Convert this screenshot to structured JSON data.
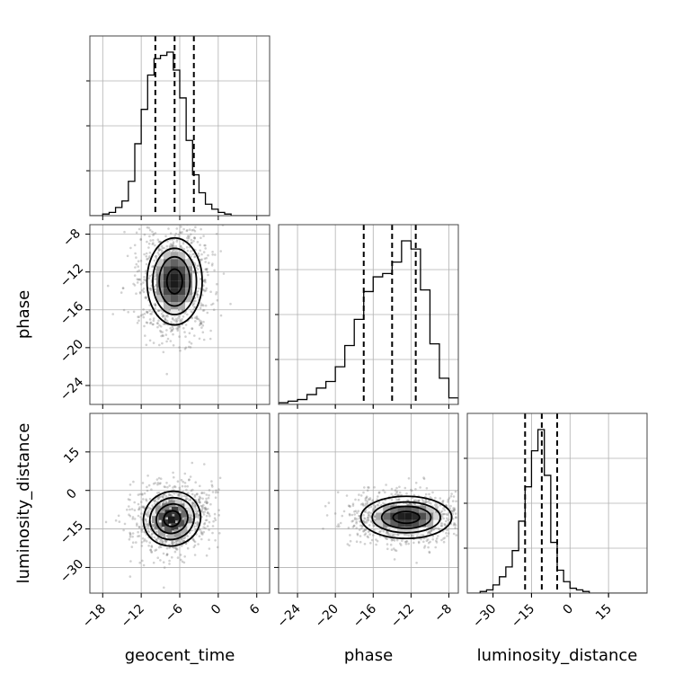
{
  "chart_data": {
    "type": "corner",
    "parameters": [
      {
        "key": "g",
        "name": "geocent_time",
        "range": [
          -20,
          8
        ],
        "ticks": [
          -18,
          -12,
          -6,
          0,
          6
        ],
        "tick_labels": [
          "−18",
          "−12",
          "−6",
          "0",
          "6"
        ],
        "quantiles": [
          -9.8,
          -6.8,
          -3.8
        ],
        "histogram": {
          "bin_edges": [
            -20,
            -19,
            -18,
            -17,
            -16,
            -15,
            -14,
            -13,
            -12,
            -11,
            -10,
            -9,
            -8,
            -7,
            -6,
            -5,
            -4,
            -3,
            -2,
            -1,
            0,
            1,
            2,
            3,
            4,
            5,
            6,
            7,
            8
          ],
          "density": [
            0,
            0,
            0.01,
            0.02,
            0.05,
            0.09,
            0.21,
            0.44,
            0.65,
            0.86,
            0.96,
            0.98,
            1.0,
            0.89,
            0.72,
            0.46,
            0.25,
            0.14,
            0.07,
            0.04,
            0.02,
            0.01,
            0,
            0,
            0,
            0,
            0,
            0
          ]
        }
      },
      {
        "key": "p",
        "name": "phase",
        "range": [
          -26,
          -7
        ],
        "ticks": [
          -24,
          -20,
          -16,
          -12,
          -8
        ],
        "tick_labels": [
          "−24",
          "−20",
          "−16",
          "−12",
          "−8"
        ],
        "quantiles": [
          -17.0,
          -14.0,
          -11.5
        ],
        "histogram": {
          "bin_edges": [
            -26,
            -25,
            -24,
            -23,
            -22,
            -21,
            -20,
            -19,
            -18,
            -17,
            -16,
            -15,
            -14,
            -13,
            -12,
            -11,
            -10,
            -9,
            -8,
            -7
          ],
          "density": [
            0.01,
            0.02,
            0.03,
            0.06,
            0.1,
            0.14,
            0.23,
            0.36,
            0.52,
            0.69,
            0.78,
            0.8,
            0.87,
            1.0,
            0.95,
            0.7,
            0.37,
            0.16,
            0.04
          ]
        }
      },
      {
        "key": "l",
        "name": "luminosity_distance",
        "range": [
          -40,
          30
        ],
        "ticks": [
          -30,
          -15,
          0,
          15
        ],
        "tick_labels": [
          "−30",
          "−15",
          "0",
          "15"
        ],
        "quantiles": [
          -17.5,
          -11.0,
          -5.0
        ],
        "histogram": {
          "bin_edges": [
            -40,
            -37.5,
            -35,
            -32.5,
            -30,
            -27.5,
            -25,
            -22.5,
            -20,
            -17.5,
            -15,
            -12.5,
            -10,
            -7.5,
            -5,
            -2.5,
            0,
            2.5,
            5,
            7.5,
            10,
            12.5,
            15,
            17.5,
            20,
            22.5,
            25,
            27.5,
            30
          ],
          "density": [
            0,
            0,
            0.01,
            0.02,
            0.05,
            0.1,
            0.16,
            0.26,
            0.44,
            0.65,
            0.87,
            1.0,
            0.72,
            0.31,
            0.14,
            0.07,
            0.03,
            0.02,
            0.01,
            0,
            0,
            0,
            0,
            0,
            0,
            0,
            0,
            0
          ]
        }
      }
    ],
    "pairs": [
      {
        "x": "g",
        "y": "p",
        "center": [
          -6.8,
          -13.0
        ],
        "levels": [
          {
            "sx": 1.2,
            "sy": 1.3
          },
          {
            "sx": 2.4,
            "sy": 2.6
          },
          {
            "sx": 3.4,
            "sy": 3.5
          },
          {
            "sx": 4.3,
            "sy": 4.6
          }
        ],
        "tilt_deg": 0
      },
      {
        "x": "g",
        "y": "l",
        "center": [
          -7.2,
          -11.0
        ],
        "levels": [
          {
            "sx": 1.3,
            "sy": 3.0
          },
          {
            "sx": 2.5,
            "sy": 5.6
          },
          {
            "sx": 3.5,
            "sy": 8.0
          },
          {
            "sx": 4.5,
            "sy": 10.5
          }
        ],
        "tilt_deg": -25
      },
      {
        "x": "p",
        "y": "l",
        "center": [
          -12.5,
          -10.5
        ],
        "levels": [
          {
            "sx": 1.4,
            "sy": 2.3
          },
          {
            "sx": 2.6,
            "sy": 4.3
          },
          {
            "sx": 3.6,
            "sy": 6.0
          },
          {
            "sx": 4.8,
            "sy": 8.2
          }
        ],
        "tilt_deg": 0
      }
    ],
    "grid": true,
    "colors": {
      "hist": "#000000",
      "density_dark": "#000000",
      "points": "#7a7a7a",
      "grid": "#b0b0b0"
    }
  }
}
